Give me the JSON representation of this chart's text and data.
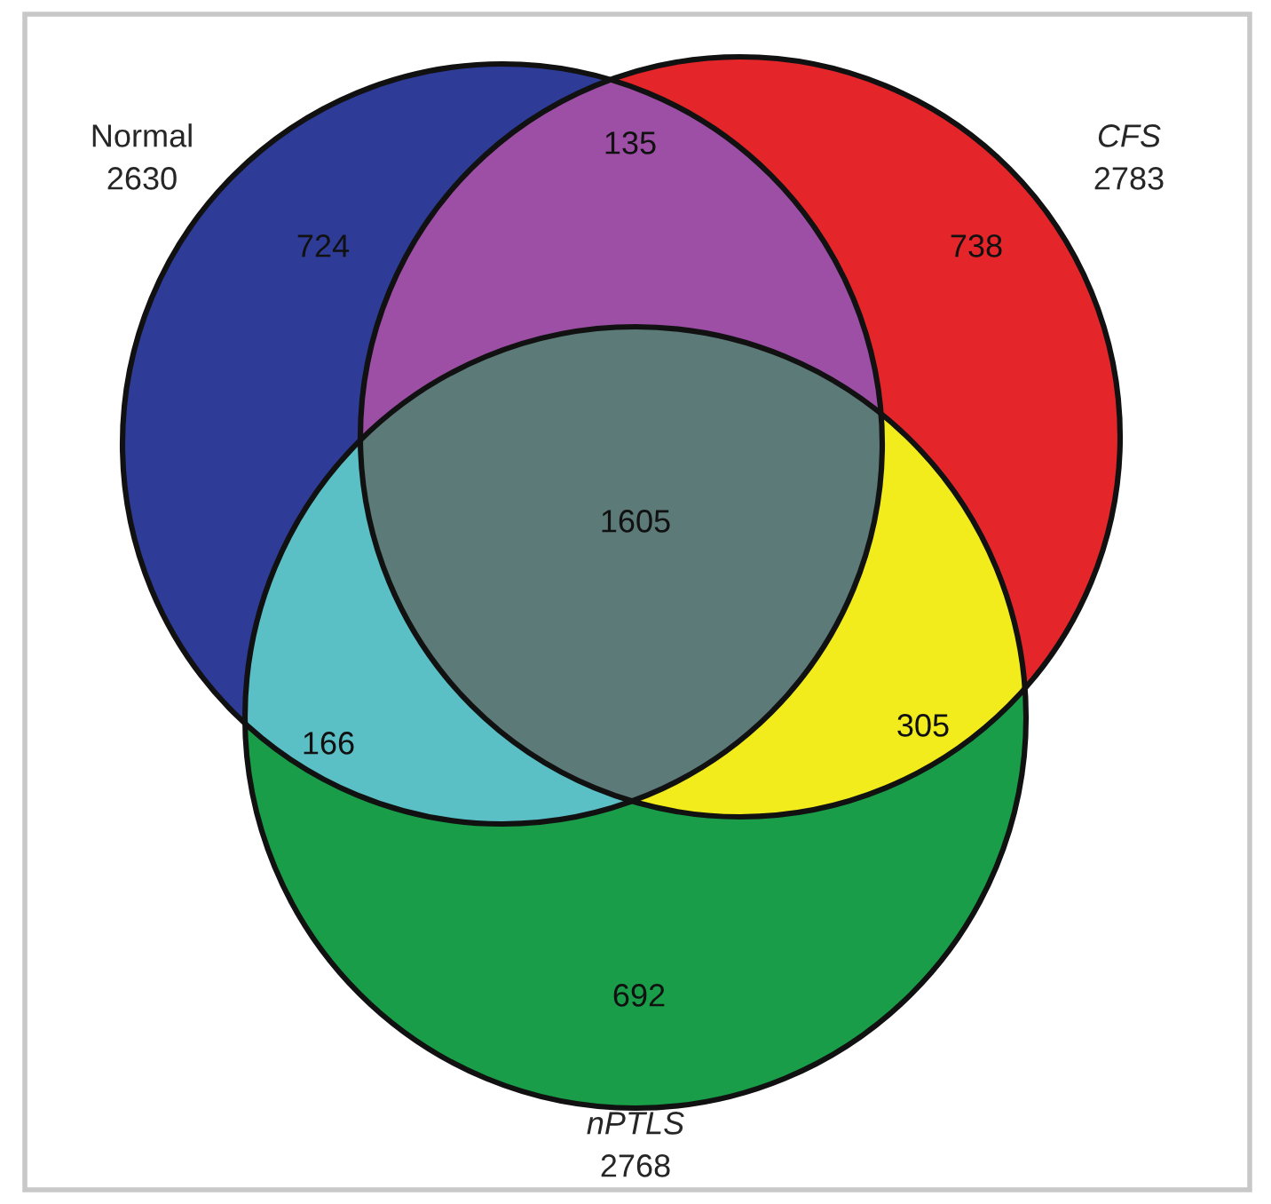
{
  "chart_data": {
    "type": "other",
    "data_labels": true,
    "categories": [
      "Normal",
      "CFS",
      "nPTLS"
    ],
    "values": [
      2630,
      2783,
      2768
    ],
    "annotations": [
      "724",
      "135",
      "738",
      "166",
      "1605",
      "305",
      "692"
    ],
    "colors": [
      "#2e3c98",
      "#e4262a",
      "#1a9d48"
    ]
  }
}
